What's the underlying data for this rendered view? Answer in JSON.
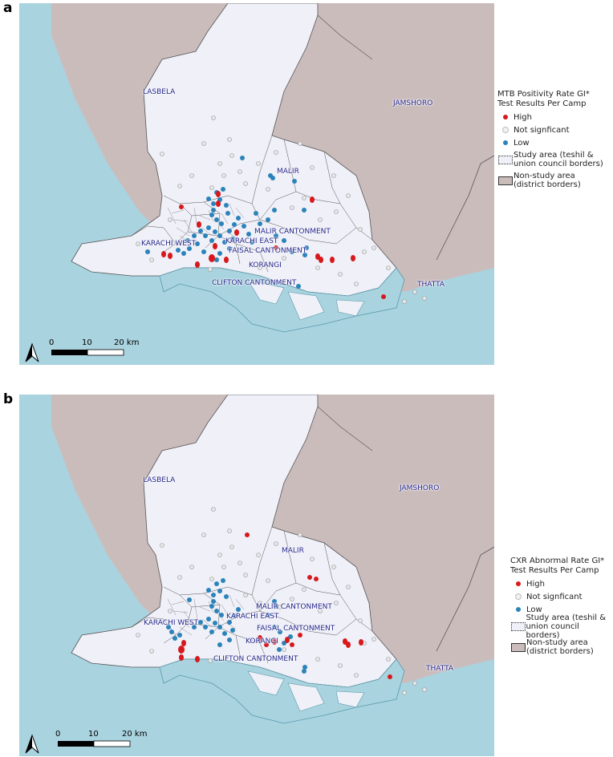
{
  "panels": [
    {
      "label": "a",
      "legend": {
        "title_line1": "MTB Positivity Rate GI*",
        "title_line2": "Test Results Per Camp",
        "high": "High",
        "not_significant": "Not signficant",
        "low": "Low",
        "study_line1": "Study area (teshil &",
        "study_line2": "union council borders)",
        "nonstudy_line1": "Non-study area",
        "nonstudy_line2": "(district borders)"
      },
      "places": {
        "lasbela": "LASBELA",
        "jamshoro": "JAMSHORO",
        "malir": "MALIR",
        "malir_cantonment": "MALIR CANTONMENT",
        "karachi_west": "KARACHI WEST",
        "karachi_east": "KARACHI EAST",
        "faisal_cantonment": "FAISAL CANTONMENT",
        "korangi": "KORANGI",
        "clifton_cantonment": "CLIFTON CANTONMENT",
        "thatta": "THATTA"
      },
      "scale": {
        "zero": "0",
        "ten": "10",
        "twenty": "20 km"
      }
    },
    {
      "label": "b",
      "legend": {
        "title_line1": "CXR Abnormal Rate GI*",
        "title_line2": "Test Results Per Camp",
        "high": "High",
        "not_significant": "Not signficant",
        "low": "Low",
        "study_line1": "Study area (teshil &",
        "study_line2": "union council borders)",
        "nonstudy_line1": "Non-study area",
        "nonstudy_line2": "(district borders)"
      },
      "places": {
        "lasbela": "LASBELA",
        "jamshoro": "JAMSHORO",
        "malir": "MALIR",
        "malir_cantonment": "MALIR CANTONMENT",
        "karachi_west": "KARACHI WEST",
        "karachi_east": "KARACHI EAST",
        "faisal_cantonment": "FAISAL CANTONMENT",
        "korangi": "KORANGI",
        "clifton_cantonment": "CLIFTON CANTONMENT",
        "thatta": "THATTA"
      },
      "scale": {
        "zero": "0",
        "ten": "10",
        "twenty": "20 km"
      }
    }
  ],
  "colors": {
    "high": "#d7191c",
    "not_significant": "#e8e8e8",
    "low": "#2b83ba",
    "water": "#a9d3df",
    "nonstudy": "#cbbcbc",
    "study": "#eff0f8"
  }
}
